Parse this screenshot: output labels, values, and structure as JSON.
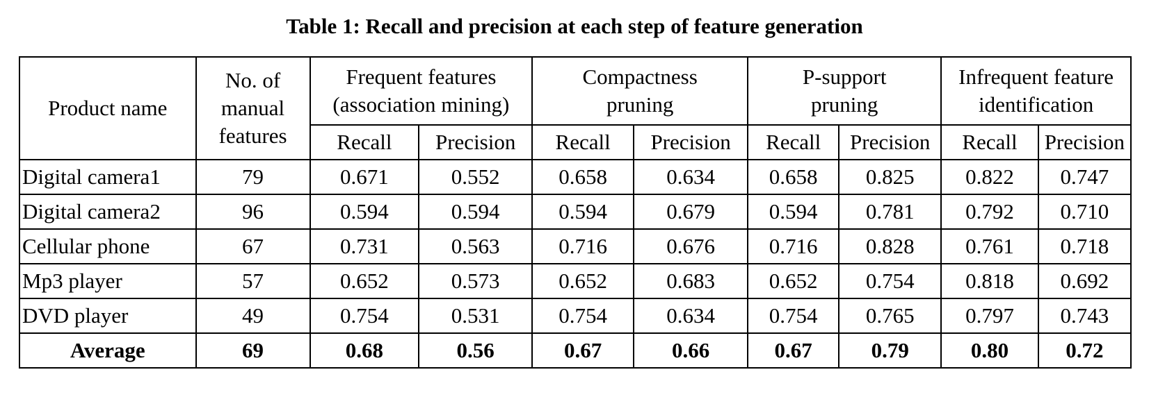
{
  "caption": "Table 1: Recall and precision at each step of feature generation",
  "headers": {
    "product_name": "Product name",
    "manual_features": [
      "No. of",
      "manual",
      "features"
    ],
    "groups": [
      {
        "line1": "Frequent features",
        "line2": "(association mining)"
      },
      {
        "line1": "Compactness",
        "line2": "pruning"
      },
      {
        "line1": "P-support",
        "line2": "pruning"
      },
      {
        "line1": "Infrequent feature",
        "line2": "identification"
      }
    ],
    "recall": "Recall",
    "precision": "Precision"
  },
  "rows": [
    {
      "name": "Digital camera1",
      "manual": "79",
      "values": [
        "0.671",
        "0.552",
        "0.658",
        "0.634",
        "0.658",
        "0.825",
        "0.822",
        "0.747"
      ]
    },
    {
      "name": "Digital camera2",
      "manual": "96",
      "values": [
        "0.594",
        "0.594",
        "0.594",
        "0.679",
        "0.594",
        "0.781",
        "0.792",
        "0.710"
      ]
    },
    {
      "name": "Cellular phone",
      "manual": "67",
      "values": [
        "0.731",
        "0.563",
        "0.716",
        "0.676",
        "0.716",
        "0.828",
        "0.761",
        "0.718"
      ]
    },
    {
      "name": "Mp3 player",
      "manual": "57",
      "values": [
        "0.652",
        "0.573",
        "0.652",
        "0.683",
        "0.652",
        "0.754",
        "0.818",
        "0.692"
      ]
    },
    {
      "name": "DVD player",
      "manual": "49",
      "values": [
        "0.754",
        "0.531",
        "0.754",
        "0.634",
        "0.754",
        "0.765",
        "0.797",
        "0.743"
      ]
    }
  ],
  "average": {
    "name": "Average",
    "manual": "69",
    "values": [
      "0.68",
      "0.56",
      "0.67",
      "0.66",
      "0.67",
      "0.79",
      "0.80",
      "0.72"
    ]
  }
}
